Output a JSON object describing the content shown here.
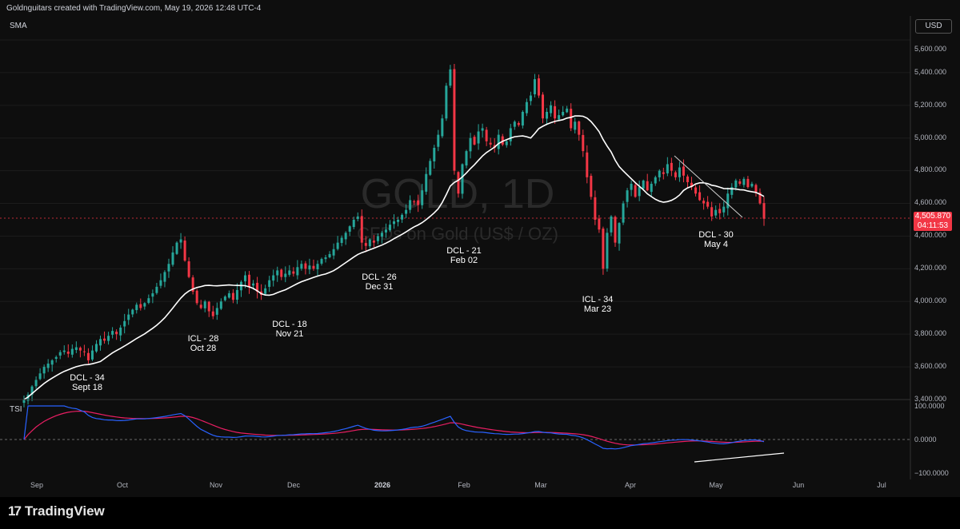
{
  "header": {
    "attribution": "Goldnguitars created with TradingView.com, May 19, 2026 12:48 UTC-4"
  },
  "watermark": {
    "symbol": "GOLD, 1D",
    "name": "CFDs on Gold (US$ / OZ)"
  },
  "price_pane": {
    "indicator": "SMA",
    "currency": "USD",
    "y_labels": [
      "5,600.000",
      "5,400.000",
      "5,200.000",
      "5,000.000",
      "4,800.000",
      "4,600.000",
      "4,400.000",
      "4,200.000",
      "4,000.000",
      "3,800.000",
      "3,600.000",
      "3,400.000"
    ],
    "last_price": "4,505.870",
    "countdown": "04:11:53"
  },
  "tsi_pane": {
    "indicator": "TSI",
    "y_labels": [
      "100.0000",
      "0.0000",
      "−100.0000"
    ]
  },
  "x_axis": {
    "labels": [
      "Sep",
      "Oct",
      "Nov",
      "Dec",
      "2026",
      "Feb",
      "Mar",
      "Apr",
      "May",
      "Jun",
      "Jul"
    ]
  },
  "annotations": [
    {
      "line1": "DCL - 34",
      "line2": "Sept 18"
    },
    {
      "line1": "ICL - 28",
      "line2": "Oct 28"
    },
    {
      "line1": "DCL - 18",
      "line2": "Nov 21"
    },
    {
      "line1": "DCL - 26",
      "line2": "Dec 31"
    },
    {
      "line1": "DCL - 21",
      "line2": "Feb 02"
    },
    {
      "line1": "ICL - 34",
      "line2": "Mar 23"
    },
    {
      "line1": "DCL - 30",
      "line2": "May 4"
    }
  ],
  "colors": {
    "up": "#26a69a",
    "down": "#f23645",
    "sma": "#ffffff",
    "tsi": "#2962ff",
    "tsi_signal": "#e91e63"
  },
  "footer": {
    "brand": "TradingView"
  },
  "chart_data": {
    "type": "candlestick",
    "ylim": [
      3400,
      5600
    ],
    "closes": [
      3400,
      3430,
      3480,
      3520,
      3560,
      3600,
      3620,
      3640,
      3660,
      3690,
      3700,
      3680,
      3710,
      3720,
      3700,
      3690,
      3640,
      3700,
      3740,
      3770,
      3760,
      3790,
      3820,
      3800,
      3840,
      3880,
      3920,
      3950,
      3980,
      3960,
      3990,
      4020,
      4050,
      4090,
      4130,
      4180,
      4230,
      4300,
      4360,
      4380,
      4250,
      4150,
      4060,
      3990,
      3960,
      4000,
      3940,
      3910,
      3960,
      4000,
      4030,
      4050,
      4010,
      4070,
      4120,
      4160,
      4090,
      4110,
      4060,
      4040,
      4080,
      4130,
      4160,
      4190,
      4150,
      4170,
      4190,
      4170,
      4210,
      4230,
      4200,
      4220,
      4200,
      4230,
      4260,
      4270,
      4290,
      4320,
      4360,
      4390,
      4420,
      4460,
      4500,
      4520,
      4360,
      4340,
      4380,
      4360,
      4400,
      4420,
      4440,
      4470,
      4490,
      4500,
      4530,
      4560,
      4620,
      4610,
      4590,
      4680,
      4780,
      4860,
      4940,
      5020,
      5120,
      5320,
      5420,
      4800,
      4660,
      4840,
      4920,
      5000,
      4960,
      5040,
      5060,
      4980,
      4960,
      4940,
      5020,
      4960,
      4980,
      5060,
      5100,
      5080,
      5160,
      5220,
      5260,
      5360,
      5260,
      5120,
      5160,
      5200,
      5120,
      5140,
      5160,
      5180,
      5060,
      5100,
      5020,
      4920,
      4760,
      4640,
      4500,
      4440,
      4200,
      4420,
      4520,
      4360,
      4480,
      4600,
      4680,
      4720,
      4640,
      4700,
      4740,
      4680,
      4720,
      4760,
      4800,
      4780,
      4840,
      4800,
      4760,
      4820,
      4770,
      4730,
      4700,
      4660,
      4620,
      4600,
      4580,
      4520,
      4560,
      4540,
      4580,
      4660,
      4700,
      4740,
      4720,
      4750,
      4700,
      4720,
      4670,
      4600,
      4506
    ],
    "sma_window": 20,
    "tsi_range": [
      -100,
      100
    ]
  }
}
